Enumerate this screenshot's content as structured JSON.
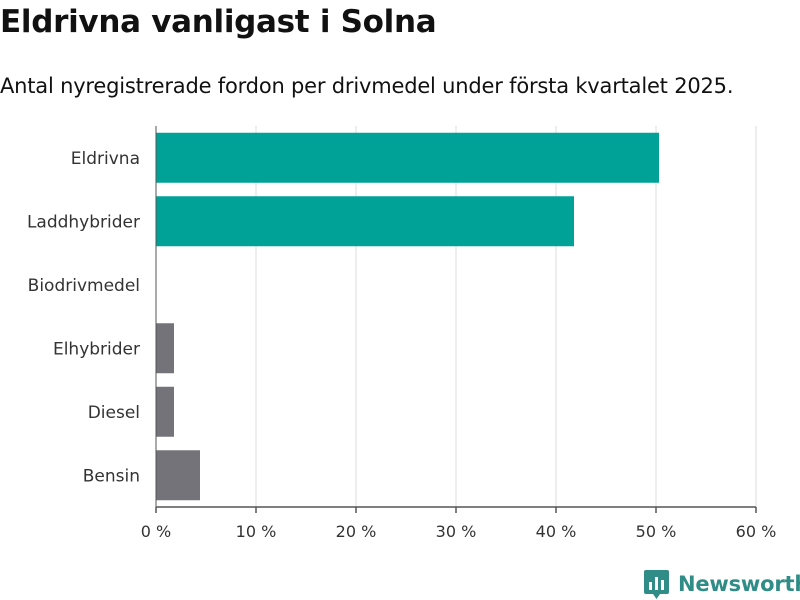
{
  "header": {
    "title": "Eldrivna vanligast i Solna",
    "subtitle": "Antal nyregistrerade fordon per drivmedel under första kvartalet 2025."
  },
  "brand": {
    "name": "Newsworthy",
    "icon": "newsworthy-logo-icon",
    "color": "#2f8c86"
  },
  "colors": {
    "highlight": "#00a298",
    "default": "#74737a",
    "grid": "#dddddd",
    "axis": "#555555"
  },
  "chart_data": {
    "type": "bar",
    "orientation": "horizontal",
    "title": "Eldrivna vanligast i Solna",
    "subtitle": "Antal nyregistrerade fordon per drivmedel under första kvartalet 2025.",
    "categories": [
      "Eldrivna",
      "Laddhybrider",
      "Biodrivmedel",
      "Elhybrider",
      "Diesel",
      "Bensin"
    ],
    "values": [
      50.3,
      41.8,
      0,
      1.8,
      1.8,
      4.4
    ],
    "highlighted": [
      true,
      true,
      false,
      false,
      false,
      false
    ],
    "unit": "%",
    "xlim": [
      0,
      60
    ],
    "xticks": [
      0,
      10,
      20,
      30,
      40,
      50,
      60
    ],
    "xtick_labels": [
      "0 %",
      "10 %",
      "20 %",
      "30 %",
      "40 %",
      "50 %",
      "60 %"
    ],
    "grid": true,
    "legend": "none"
  }
}
